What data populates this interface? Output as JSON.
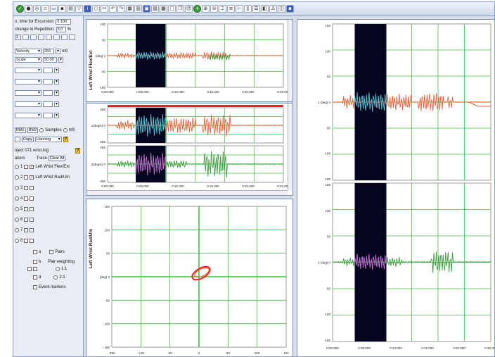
{
  "left_panel": {
    "rows": [
      {
        "label": "n. time for Excursion:",
        "value": "0.100"
      },
      {
        "label": "change to Repetition:",
        "value": "5.0",
        "unit": "%"
      }
    ],
    "velocity_label": "Velocity",
    "velocity_value": "250",
    "velocity_unit": "m0",
    "scale_label": "Scale",
    "scale_value": "50.00",
    "rm2_button": "RM2",
    "rm_button": "RM1",
    "samples_label": "Samples",
    "ms_label": "mS",
    "copy_button": "Copy",
    "window_label": "Hanning",
    "subject": "oject 071 wrist.log",
    "markers_label": "akers",
    "traces_label": "Trace",
    "clear_all": "Clear All",
    "trace_items": [
      {
        "num": "1",
        "label": "Left Wrist Flex/Ext"
      },
      {
        "num": "2",
        "label": "Left Wrist Rad/Uln"
      },
      {
        "num": "3",
        "label": ""
      },
      {
        "num": "4",
        "label": ""
      },
      {
        "num": "5",
        "label": ""
      },
      {
        "num": "6",
        "label": ""
      },
      {
        "num": "7",
        "label": ""
      },
      {
        "num": "8",
        "label": ""
      }
    ],
    "pairs_a": "a",
    "pairs_label": "Pairs",
    "pair_b": "b",
    "pair_weighting": "Pair weighting",
    "pw_1": "1:1",
    "pw_2": "2:1",
    "pair_d": "d",
    "event_markers": "Event markers"
  },
  "panel_top_left": {
    "ylabel": "Left Wrist Flex/Ext",
    "yticks": [
      "100",
      "50",
      "(deg) 0",
      "-50",
      "-100"
    ],
    "xticks": [
      "0:00.000",
      "0:05.000",
      "0:10.000",
      "0:15.000",
      "0:20.000",
      "0:25.000"
    ]
  },
  "panel_mid_left": {
    "upper_yticks": [
      "250",
      "1(deg/s) 0",
      "-250"
    ],
    "lower_yticks": [
      "250",
      "2(deg/s) 0",
      "-250"
    ],
    "xticks": [
      "0:00.000",
      "0:05.000",
      "0:10.000",
      "0:15.000",
      "0:20.000",
      "0:25.000"
    ]
  },
  "panel_xy": {
    "ylabel": "Left Wrist Rad/Uln",
    "yticks": [
      "150",
      "100",
      "50",
      "(deg) 0",
      "-50",
      "-100",
      "-150"
    ],
    "xticks": [
      "-150",
      "-100",
      "-50",
      "0",
      "50",
      "100",
      "150"
    ]
  },
  "panel_right": {
    "upper_yticks": [
      "150",
      "100",
      "50",
      "1  (deg) 0",
      "-50",
      "-100",
      "-150"
    ],
    "lower_yticks": [
      "150",
      "100",
      "50",
      "2  (deg) 0",
      "-50",
      "-100",
      "-150"
    ],
    "xticks": [
      "0:00.000",
      "0:05.000",
      "0:10.000",
      "0:15.000",
      "0:20.000",
      "0:25.000"
    ]
  },
  "colors": {
    "grid": "#3ac43a",
    "flex": "#e8603a",
    "radial": "#3c9b3c",
    "highlight_flex": "#5bc8d8",
    "highlight_rad": "#c873d8",
    "band": "#06061e",
    "limit": "#ee2222"
  }
}
